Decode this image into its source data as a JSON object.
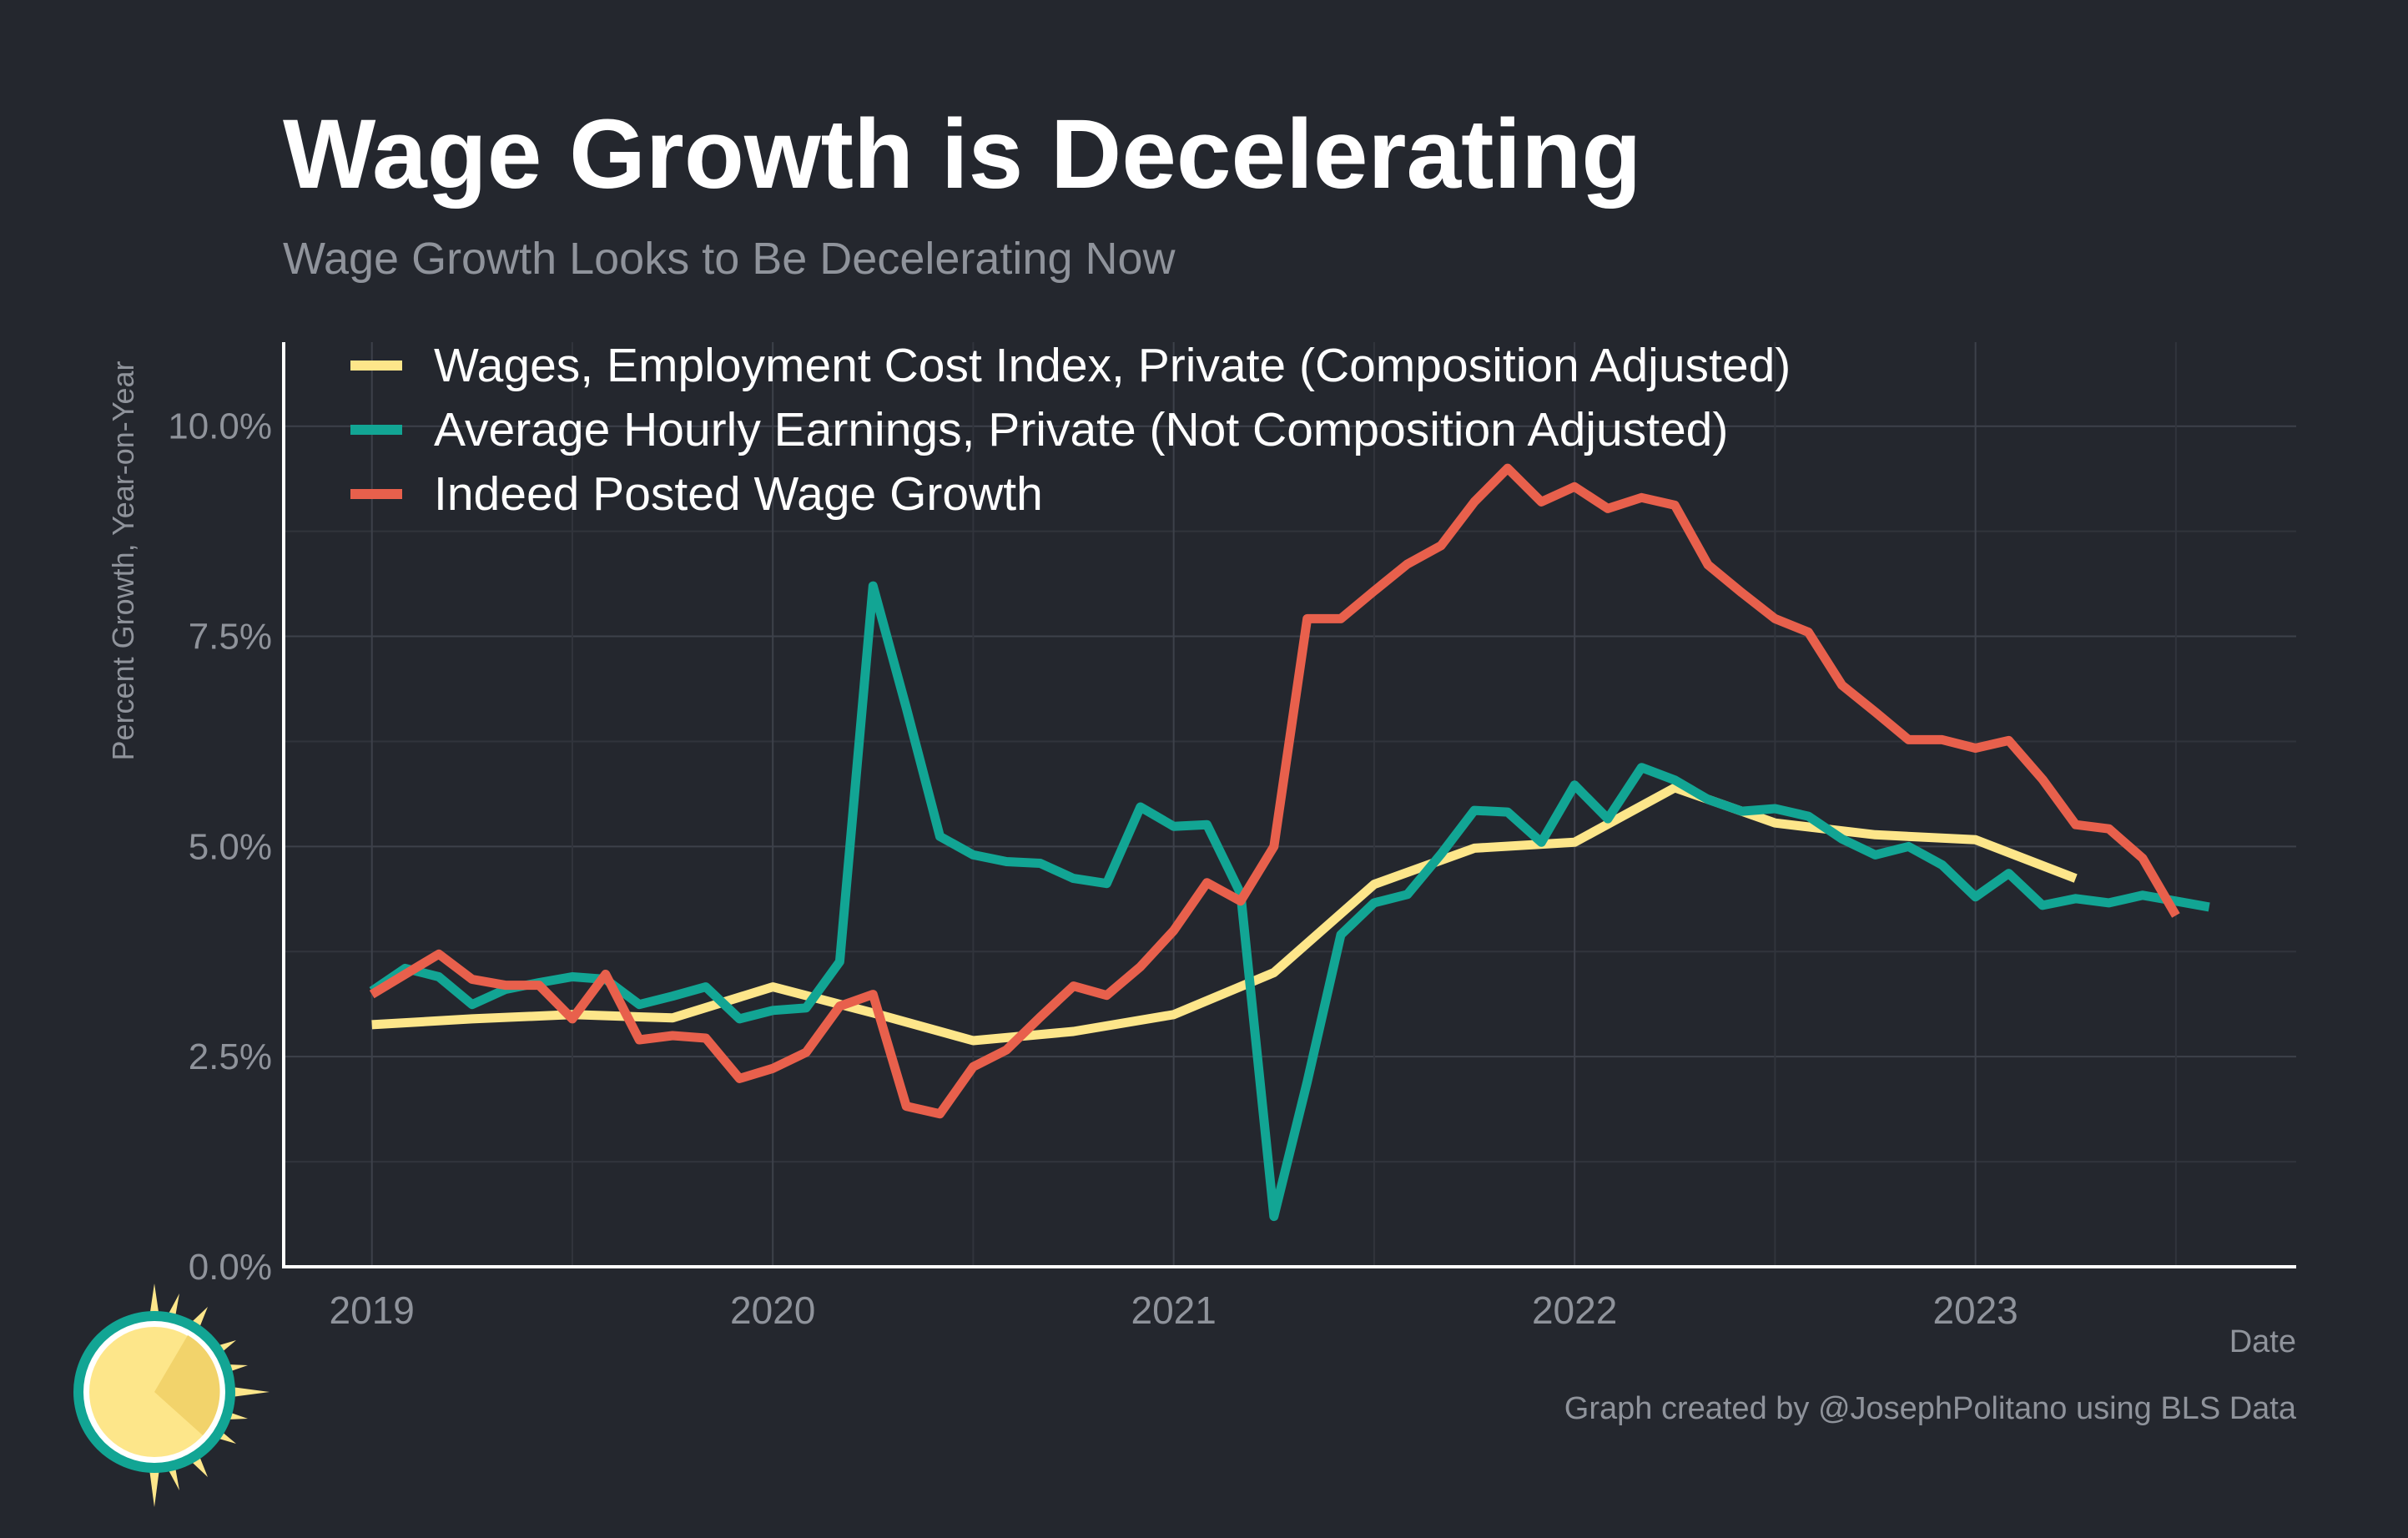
{
  "chart_data": {
    "type": "line",
    "title": "Wage Growth is Decelerating",
    "subtitle": "Wage Growth Looks to Be Decelerating Now",
    "xlabel": "Date",
    "ylabel": "Percent Growth, Year-on-Year",
    "caption": "Graph created by @JosephPolitano using BLS Data",
    "xlim": [
      2018.78,
      2023.8
    ],
    "ylim": [
      0,
      11
    ],
    "x_ticks": [
      2019,
      2020,
      2021,
      2022,
      2023
    ],
    "x_tick_labels": [
      "2019",
      "2020",
      "2021",
      "2022",
      "2023"
    ],
    "y_ticks": [
      0,
      2.5,
      5,
      7.5,
      10
    ],
    "y_tick_labels": [
      "0.0%",
      "2.5%",
      "5.0%",
      "7.5%",
      "10.0%"
    ],
    "grid": true,
    "legend_position": "top-left",
    "series": [
      {
        "name": "Wages, Employment Cost Index, Private (Composition Adjusted)",
        "color": "#fde68a",
        "x": [
          2019.0,
          2019.25,
          2019.5,
          2019.75,
          2020.0,
          2020.25,
          2020.5,
          2020.75,
          2021.0,
          2021.25,
          2021.5,
          2021.75,
          2022.0,
          2022.25,
          2022.5,
          2022.75,
          2023.0,
          2023.25
        ],
        "y": [
          2.88,
          2.95,
          3.0,
          2.96,
          3.33,
          3.02,
          2.69,
          2.8,
          3.0,
          3.5,
          4.55,
          4.98,
          5.05,
          5.7,
          5.28,
          5.14,
          5.08,
          4.62
        ]
      },
      {
        "name": "Average Hourly Earnings, Private (Not Composition Adjusted)",
        "color": "#12a594",
        "x": [
          2019.0,
          2019.083,
          2019.167,
          2019.25,
          2019.333,
          2019.417,
          2019.5,
          2019.583,
          2019.667,
          2019.75,
          2019.833,
          2019.917,
          2020.0,
          2020.083,
          2020.167,
          2020.25,
          2020.333,
          2020.417,
          2020.5,
          2020.583,
          2020.667,
          2020.75,
          2020.833,
          2020.917,
          2021.0,
          2021.083,
          2021.167,
          2021.25,
          2021.333,
          2021.417,
          2021.5,
          2021.583,
          2021.667,
          2021.75,
          2021.833,
          2021.917,
          2022.0,
          2022.083,
          2022.167,
          2022.25,
          2022.333,
          2022.417,
          2022.5,
          2022.583,
          2022.667,
          2022.75,
          2022.833,
          2022.917,
          2023.0,
          2023.083,
          2023.167,
          2023.25,
          2023.333,
          2023.417,
          2023.5,
          2023.583
        ],
        "y": [
          3.28,
          3.55,
          3.45,
          3.12,
          3.3,
          3.38,
          3.45,
          3.42,
          3.12,
          3.22,
          3.33,
          2.95,
          3.05,
          3.08,
          3.63,
          8.1,
          6.65,
          5.12,
          4.9,
          4.82,
          4.8,
          4.62,
          4.56,
          5.47,
          5.24,
          5.26,
          4.44,
          0.6,
          2.2,
          3.95,
          4.33,
          4.43,
          4.91,
          5.43,
          5.41,
          5.05,
          5.73,
          5.33,
          5.94,
          5.79,
          5.56,
          5.42,
          5.45,
          5.36,
          5.09,
          4.9,
          5.0,
          4.78,
          4.4,
          4.68,
          4.3,
          4.38,
          4.33,
          4.42,
          4.35,
          4.28
        ]
      },
      {
        "name": "Indeed Posted Wage Growth",
        "color": "#e8604c",
        "x": [
          2019.0,
          2019.083,
          2019.167,
          2019.25,
          2019.333,
          2019.417,
          2019.5,
          2019.583,
          2019.667,
          2019.75,
          2019.833,
          2019.917,
          2020.0,
          2020.083,
          2020.167,
          2020.25,
          2020.333,
          2020.417,
          2020.5,
          2020.583,
          2020.667,
          2020.75,
          2020.833,
          2020.917,
          2021.0,
          2021.083,
          2021.167,
          2021.25,
          2021.333,
          2021.417,
          2021.5,
          2021.583,
          2021.667,
          2021.75,
          2021.833,
          2021.917,
          2022.0,
          2022.083,
          2022.167,
          2022.25,
          2022.333,
          2022.417,
          2022.5,
          2022.583,
          2022.667,
          2022.75,
          2022.833,
          2022.917,
          2023.0,
          2023.083,
          2023.167,
          2023.25,
          2023.333,
          2023.417,
          2023.5
        ],
        "y": [
          3.24,
          3.48,
          3.72,
          3.42,
          3.35,
          3.35,
          2.95,
          3.48,
          2.7,
          2.75,
          2.72,
          2.24,
          2.36,
          2.55,
          3.1,
          3.24,
          1.91,
          1.82,
          2.38,
          2.58,
          2.97,
          3.34,
          3.23,
          3.57,
          4.0,
          4.57,
          4.35,
          5.0,
          7.71,
          7.71,
          8.04,
          8.36,
          8.58,
          9.1,
          9.5,
          9.1,
          9.28,
          9.02,
          9.15,
          9.06,
          8.35,
          8.02,
          7.71,
          7.55,
          6.92,
          6.6,
          6.27,
          6.27,
          6.17,
          6.26,
          5.8,
          5.26,
          5.21,
          4.86,
          4.18
        ]
      }
    ]
  }
}
